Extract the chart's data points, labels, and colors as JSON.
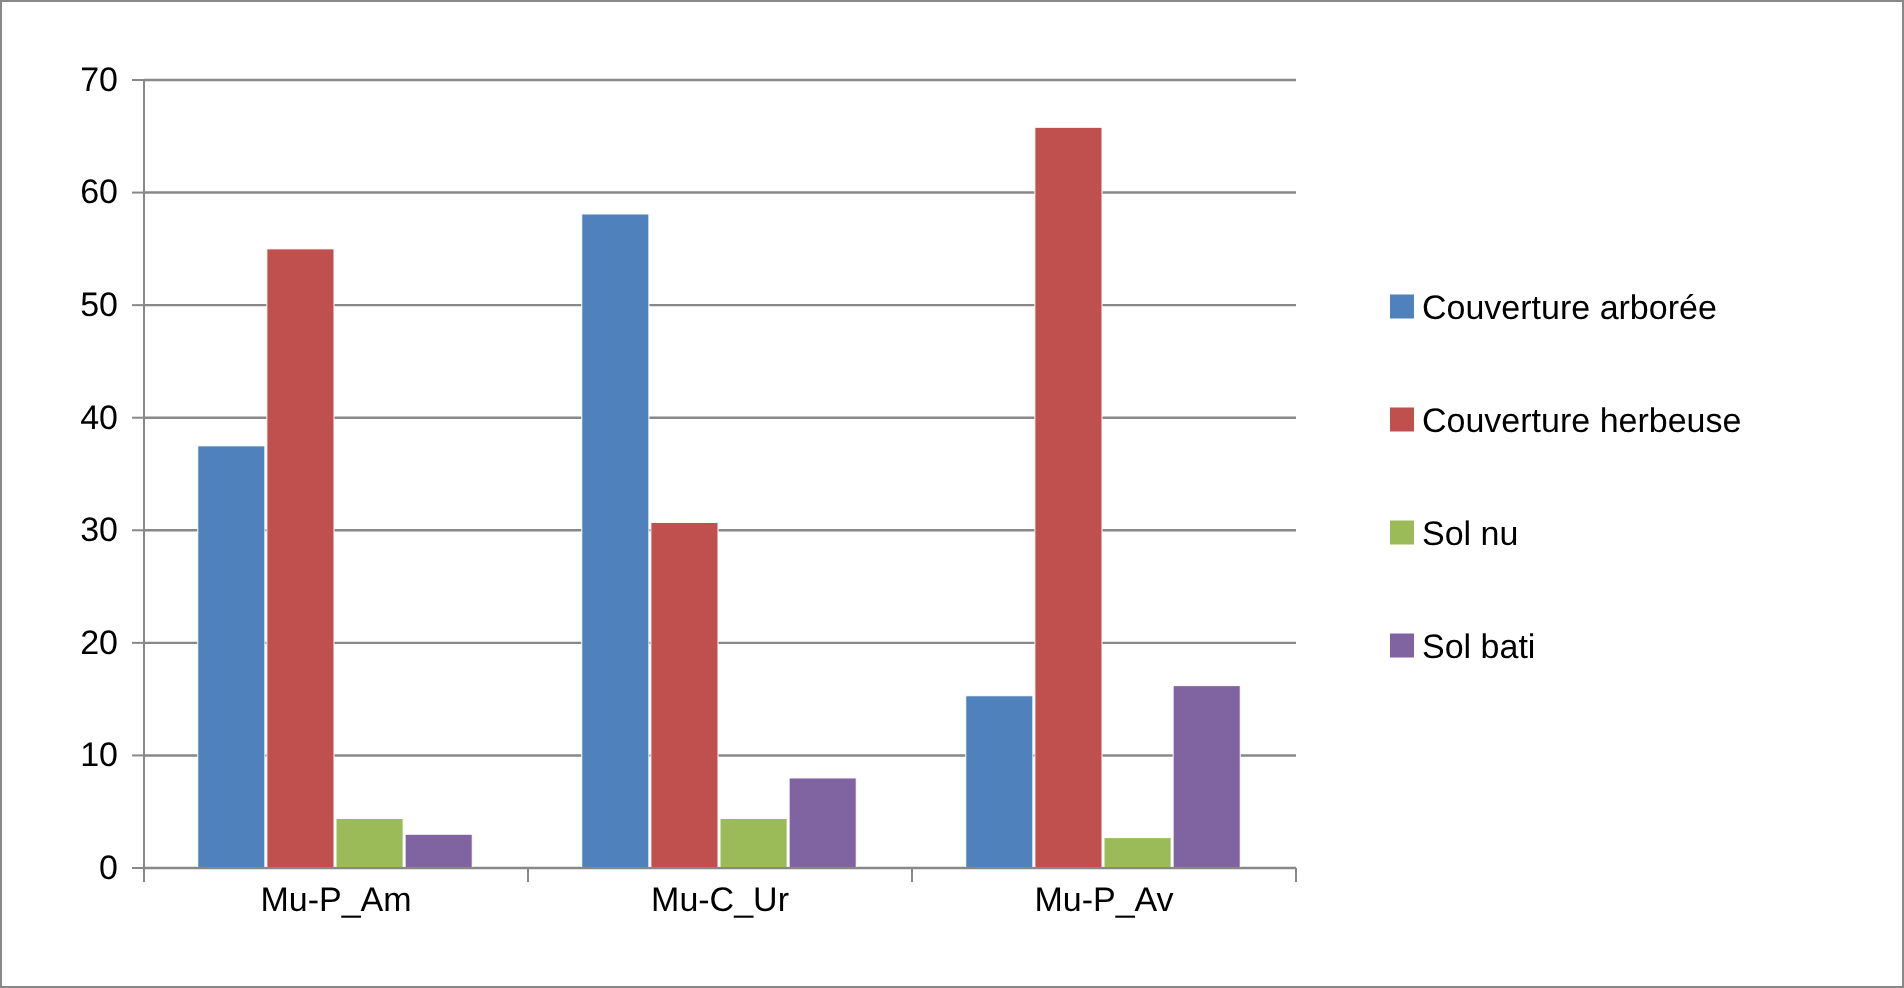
{
  "chart_data": {
    "type": "bar",
    "categories": [
      "Mu-P_Am",
      "Mu-C_Ur",
      "Mu-P_Av"
    ],
    "series": [
      {
        "name": "Couverture arborée",
        "color": "#4f81bd",
        "values": [
          37.5,
          58.1,
          15.3
        ]
      },
      {
        "name": "Couverture herbeuse",
        "color": "#c0504d",
        "values": [
          55.0,
          30.7,
          65.8
        ]
      },
      {
        "name": "Sol nu",
        "color": "#9bbb59",
        "values": [
          4.4,
          4.4,
          2.7
        ]
      },
      {
        "name": "Sol bati",
        "color": "#8064a2",
        "values": [
          3.0,
          8.0,
          16.2
        ]
      }
    ],
    "ylim": [
      0,
      70
    ],
    "yticks": [
      0,
      10,
      20,
      30,
      40,
      50,
      60,
      70
    ],
    "grid": "y",
    "legend": "right"
  }
}
